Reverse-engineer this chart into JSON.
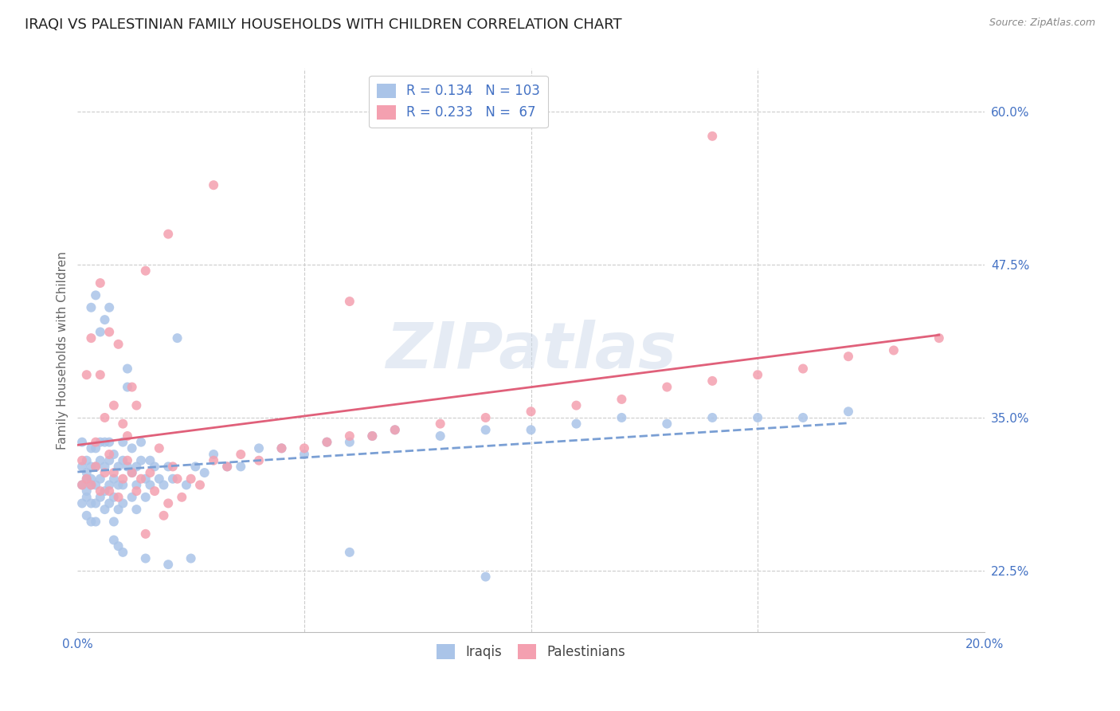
{
  "title": "IRAQI VS PALESTINIAN FAMILY HOUSEHOLDS WITH CHILDREN CORRELATION CHART",
  "source": "Source: ZipAtlas.com",
  "ylabel": "Family Households with Children",
  "watermark": "ZIPatlas",
  "xlim": [
    0.0,
    0.2
  ],
  "ylim": [
    0.175,
    0.635
  ],
  "background_color": "#ffffff",
  "iraqis_color": "#aac4e8",
  "palestinians_color": "#f4a0b0",
  "iraqis_line_color": "#7a9fd4",
  "palestinians_line_color": "#e0607a",
  "iraqis_R": 0.134,
  "iraqis_N": 103,
  "palestinians_R": 0.233,
  "palestinians_N": 67,
  "legend_text_color": "#4472c4",
  "title_fontsize": 13,
  "axis_label_fontsize": 11,
  "tick_fontsize": 11,
  "iraqis_x": [
    0.001,
    0.001,
    0.001,
    0.001,
    0.002,
    0.002,
    0.002,
    0.002,
    0.002,
    0.002,
    0.003,
    0.003,
    0.003,
    0.003,
    0.003,
    0.003,
    0.004,
    0.004,
    0.004,
    0.004,
    0.004,
    0.005,
    0.005,
    0.005,
    0.005,
    0.006,
    0.006,
    0.006,
    0.006,
    0.007,
    0.007,
    0.007,
    0.007,
    0.008,
    0.008,
    0.008,
    0.008,
    0.009,
    0.009,
    0.009,
    0.01,
    0.01,
    0.01,
    0.01,
    0.011,
    0.011,
    0.011,
    0.012,
    0.012,
    0.012,
    0.013,
    0.013,
    0.013,
    0.014,
    0.014,
    0.015,
    0.015,
    0.016,
    0.016,
    0.017,
    0.018,
    0.019,
    0.02,
    0.021,
    0.022,
    0.024,
    0.026,
    0.028,
    0.03,
    0.033,
    0.036,
    0.04,
    0.045,
    0.05,
    0.055,
    0.06,
    0.065,
    0.07,
    0.08,
    0.09,
    0.1,
    0.11,
    0.12,
    0.13,
    0.14,
    0.15,
    0.16,
    0.17,
    0.003,
    0.004,
    0.005,
    0.006,
    0.007,
    0.008,
    0.009,
    0.01,
    0.015,
    0.02,
    0.025,
    0.06,
    0.09
  ],
  "iraqis_y": [
    0.295,
    0.31,
    0.28,
    0.33,
    0.3,
    0.29,
    0.315,
    0.285,
    0.305,
    0.27,
    0.295,
    0.31,
    0.325,
    0.28,
    0.3,
    0.265,
    0.295,
    0.31,
    0.325,
    0.28,
    0.265,
    0.3,
    0.33,
    0.285,
    0.315,
    0.29,
    0.31,
    0.33,
    0.275,
    0.295,
    0.315,
    0.33,
    0.28,
    0.3,
    0.32,
    0.285,
    0.265,
    0.295,
    0.31,
    0.275,
    0.295,
    0.315,
    0.33,
    0.28,
    0.31,
    0.39,
    0.375,
    0.305,
    0.325,
    0.285,
    0.295,
    0.31,
    0.275,
    0.315,
    0.33,
    0.3,
    0.285,
    0.315,
    0.295,
    0.31,
    0.3,
    0.295,
    0.31,
    0.3,
    0.415,
    0.295,
    0.31,
    0.305,
    0.32,
    0.31,
    0.31,
    0.325,
    0.325,
    0.32,
    0.33,
    0.33,
    0.335,
    0.34,
    0.335,
    0.34,
    0.34,
    0.345,
    0.35,
    0.345,
    0.35,
    0.35,
    0.35,
    0.355,
    0.44,
    0.45,
    0.42,
    0.43,
    0.44,
    0.25,
    0.245,
    0.24,
    0.235,
    0.23,
    0.235,
    0.24,
    0.22
  ],
  "palestinians_x": [
    0.001,
    0.001,
    0.002,
    0.002,
    0.003,
    0.003,
    0.004,
    0.004,
    0.005,
    0.005,
    0.006,
    0.006,
    0.007,
    0.007,
    0.008,
    0.008,
    0.009,
    0.009,
    0.01,
    0.01,
    0.011,
    0.011,
    0.012,
    0.012,
    0.013,
    0.013,
    0.014,
    0.015,
    0.016,
    0.017,
    0.018,
    0.019,
    0.02,
    0.021,
    0.022,
    0.023,
    0.025,
    0.027,
    0.03,
    0.033,
    0.036,
    0.04,
    0.045,
    0.05,
    0.055,
    0.06,
    0.065,
    0.07,
    0.08,
    0.09,
    0.1,
    0.11,
    0.12,
    0.13,
    0.14,
    0.15,
    0.16,
    0.17,
    0.18,
    0.19,
    0.14,
    0.06,
    0.03,
    0.02,
    0.015,
    0.007,
    0.005
  ],
  "palestinians_y": [
    0.295,
    0.315,
    0.3,
    0.385,
    0.295,
    0.415,
    0.31,
    0.33,
    0.29,
    0.385,
    0.305,
    0.35,
    0.32,
    0.29,
    0.305,
    0.36,
    0.285,
    0.41,
    0.3,
    0.345,
    0.315,
    0.335,
    0.305,
    0.375,
    0.29,
    0.36,
    0.3,
    0.255,
    0.305,
    0.29,
    0.325,
    0.27,
    0.28,
    0.31,
    0.3,
    0.285,
    0.3,
    0.295,
    0.315,
    0.31,
    0.32,
    0.315,
    0.325,
    0.325,
    0.33,
    0.335,
    0.335,
    0.34,
    0.345,
    0.35,
    0.355,
    0.36,
    0.365,
    0.375,
    0.38,
    0.385,
    0.39,
    0.4,
    0.405,
    0.415,
    0.58,
    0.445,
    0.54,
    0.5,
    0.47,
    0.42,
    0.46
  ]
}
